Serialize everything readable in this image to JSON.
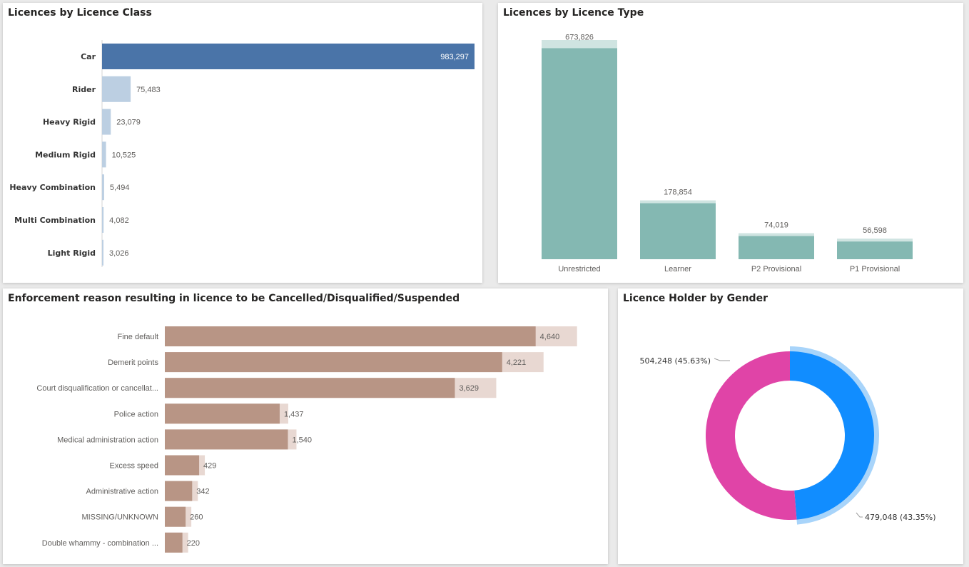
{
  "chart_data": [
    {
      "type": "bar",
      "orientation": "horizontal",
      "title": "Licences by Licence Class",
      "categories": [
        "Car",
        "Rider",
        "Heavy Rigid",
        "Medium Rigid",
        "Heavy Combination",
        "Multi Combination",
        "Light Rigid"
      ],
      "values": [
        983297,
        75483,
        23079,
        10525,
        5494,
        4082,
        3026
      ],
      "value_labels": [
        "983,297",
        "75,483",
        "23,079",
        "10,525",
        "5,494",
        "4,082",
        "3,026"
      ],
      "colors": {
        "highlight": "#4a74a8",
        "faded": "#bccfe2"
      },
      "xlim": [
        0,
        983297
      ],
      "grid": false,
      "legend": "none"
    },
    {
      "type": "bar",
      "orientation": "vertical",
      "title": "Licences by Licence Type",
      "categories": [
        "Unrestricted",
        "Learner",
        "P2 Provisional",
        "P1 Provisional"
      ],
      "values": [
        673826,
        178854,
        74019,
        56598
      ],
      "value_labels": [
        "673,826",
        "178,854",
        "74,019",
        "56,598"
      ],
      "colors": {
        "bar": "#84b8b2",
        "faded": "#cfe4e1"
      },
      "ylim": [
        0,
        700000
      ],
      "grid": false,
      "legend": "none"
    },
    {
      "type": "bar",
      "orientation": "horizontal",
      "title": "Enforcement reason resulting in licence to be Cancelled/Disqualified/Suspended",
      "categories": [
        "Fine default",
        "Demerit points",
        "Court disqualification or cancellat...",
        "Police action",
        "Medical administration action",
        "Excess speed",
        "Administrative action",
        "MISSING/UNKNOWN",
        "Double whammy - combination ..."
      ],
      "values": [
        4640,
        4221,
        3629,
        1437,
        1540,
        429,
        342,
        260,
        220
      ],
      "value_labels": [
        "4,640",
        "4,221",
        "3,629",
        "1,437",
        "1,540",
        "429",
        "342",
        "260",
        "220"
      ],
      "colors": {
        "bar": "#b89585",
        "faded": "#e8d8d2"
      },
      "xlim": [
        0,
        5000
      ],
      "grid": false,
      "legend": "none"
    },
    {
      "type": "pie",
      "style": "donut",
      "title": "Licence Holder by Gender",
      "slices": [
        {
          "value": 479048,
          "percent": 43.35,
          "label": "479,048 (43.35%)",
          "color": "#118dff"
        },
        {
          "value": 504248,
          "percent": 45.63,
          "label": "504,248 (45.63%)",
          "color": "#e044a7"
        }
      ],
      "colors": {
        "outer_ring": "#a8d4fa"
      },
      "legend": "none"
    }
  ]
}
